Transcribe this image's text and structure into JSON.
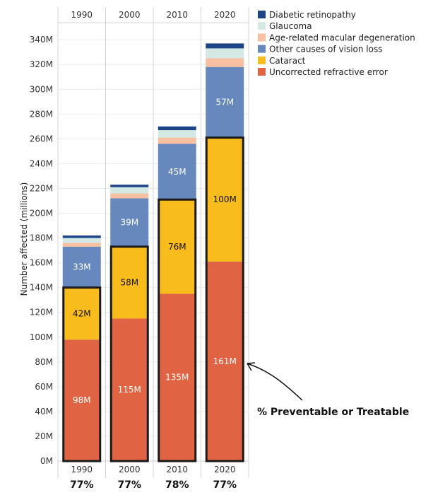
{
  "chart_data": {
    "type": "bar",
    "stacked": true,
    "ylabel": "Number affected (millions)",
    "ylim": [
      0,
      350
    ],
    "yticks": [
      0,
      20,
      40,
      60,
      80,
      100,
      120,
      140,
      160,
      180,
      200,
      220,
      240,
      260,
      280,
      300,
      320,
      340
    ],
    "ytick_labels": [
      "0M",
      "20M",
      "40M",
      "60M",
      "80M",
      "100M",
      "120M",
      "140M",
      "160M",
      "180M",
      "200M",
      "220M",
      "240M",
      "260M",
      "280M",
      "300M",
      "320M",
      "340M"
    ],
    "categories": [
      "1990",
      "2000",
      "2010",
      "2020"
    ],
    "series": [
      {
        "name": "Uncorrected refractive error",
        "color": "#E06444",
        "values": [
          98,
          115,
          135,
          161
        ],
        "labels": [
          "98M",
          "115M",
          "135M",
          "161M"
        ],
        "label_color": "#ffffff"
      },
      {
        "name": "Cataract",
        "color": "#F8BC1C",
        "values": [
          42,
          58,
          76,
          100
        ],
        "labels": [
          "42M",
          "58M",
          "76M",
          "100M"
        ],
        "label_color": "#111111"
      },
      {
        "name": "Other causes of vision loss",
        "color": "#6688BC",
        "values": [
          33,
          39,
          45,
          57
        ],
        "labels": [
          "33M",
          "39M",
          "45M",
          "57M"
        ],
        "label_color": "#ffffff"
      },
      {
        "name": "Age-related macular degeneration",
        "color": "#F8C0A0",
        "values": [
          3,
          4,
          5,
          7
        ],
        "labels": [
          "",
          "",
          "",
          ""
        ],
        "label_color": "#111111"
      },
      {
        "name": "Glaucoma",
        "color": "#D4E8E4",
        "values": [
          4,
          5,
          6,
          8
        ],
        "labels": [
          "",
          "",
          "",
          ""
        ],
        "label_color": "#111111"
      },
      {
        "name": "Diabetic retinopathy",
        "color": "#1E4488",
        "values": [
          2,
          2,
          3,
          4
        ],
        "labels": [
          "",
          "",
          "",
          ""
        ],
        "label_color": "#111111"
      }
    ],
    "legend_order": [
      "Diabetic retinopathy",
      "Glaucoma",
      "Age-related macular degeneration",
      "Other causes of vision loss",
      "Cataract",
      "Uncorrected refractive error"
    ],
    "preventable_pct": [
      "77%",
      "77%",
      "78%",
      "77%"
    ],
    "annotation": "% Preventable or Treatable",
    "legend_position": "top-right"
  }
}
